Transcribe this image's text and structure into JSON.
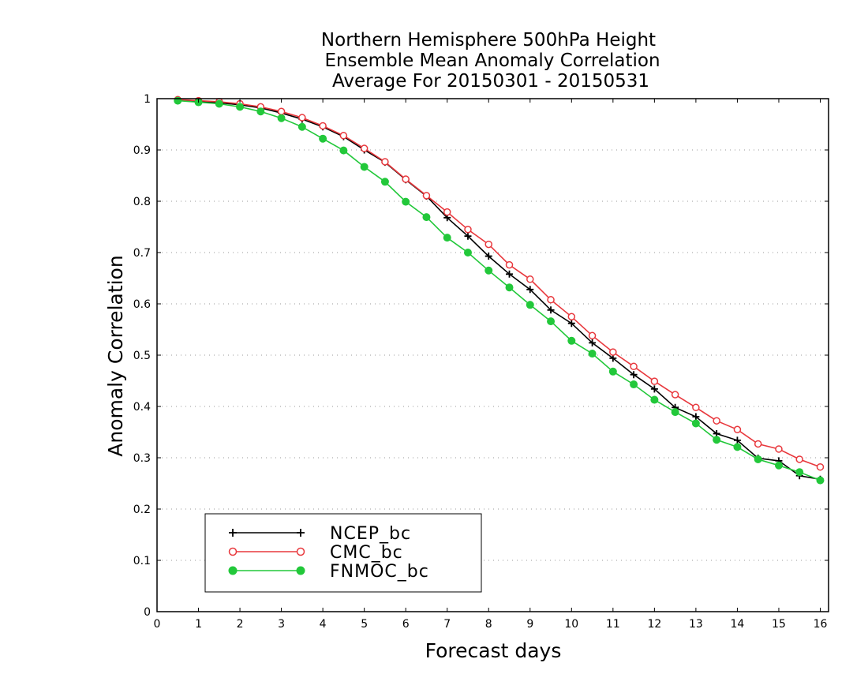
{
  "chart_data": {
    "type": "line",
    "title": [
      "Northern Hemisphere 500hPa Height",
      "Ensemble Mean Anomaly Correlation",
      "Average For 20150301 - 20150531"
    ],
    "xlabel": "Forecast days",
    "ylabel": "Anomaly Correlation",
    "xlim": [
      0,
      16.2
    ],
    "ylim": [
      0,
      1
    ],
    "xticks": [
      "0",
      "1",
      "2",
      "3",
      "4",
      "5",
      "6",
      "7",
      "8",
      "9",
      "10",
      "11",
      "12",
      "13",
      "14",
      "15",
      "16"
    ],
    "yticks": [
      "0",
      "0.1",
      "0.2",
      "0.3",
      "0.4",
      "0.5",
      "0.6",
      "0.7",
      "0.8",
      "0.9",
      "1"
    ],
    "grid": "horizontal dotted",
    "legend_position": "bottom-left",
    "x": [
      0.5,
      1,
      1.5,
      2,
      2.5,
      3,
      3.5,
      4,
      4.5,
      5,
      5.5,
      6,
      6.5,
      7,
      7.5,
      8,
      8.5,
      9,
      9.5,
      10,
      10.5,
      11,
      11.5,
      12,
      12.5,
      13,
      13.5,
      14,
      14.5,
      15,
      15.5,
      16
    ],
    "series": [
      {
        "name": "NCEP_bc",
        "color": "#000000",
        "marker": "plus",
        "values": [
          0.997,
          0.994,
          0.992,
          0.988,
          0.982,
          0.972,
          0.96,
          0.945,
          0.926,
          0.9,
          0.876,
          0.842,
          0.81,
          0.768,
          0.732,
          0.693,
          0.658,
          0.628,
          0.588,
          0.562,
          0.524,
          0.494,
          0.462,
          0.434,
          0.398,
          0.38,
          0.347,
          0.334,
          0.299,
          0.294,
          0.265,
          0.258
        ]
      },
      {
        "name": "CMC_bc",
        "color": "#e8383d",
        "marker": "open-circle",
        "values": [
          0.998,
          0.996,
          0.994,
          0.99,
          0.984,
          0.975,
          0.963,
          0.947,
          0.928,
          0.903,
          0.877,
          0.843,
          0.811,
          0.779,
          0.745,
          0.716,
          0.676,
          0.648,
          0.608,
          0.575,
          0.538,
          0.506,
          0.478,
          0.449,
          0.423,
          0.398,
          0.372,
          0.355,
          0.327,
          0.317,
          0.297,
          0.282
        ]
      },
      {
        "name": "FNMOC_bc",
        "color": "#22c83a",
        "marker": "filled-circle",
        "values": [
          0.996,
          0.993,
          0.99,
          0.984,
          0.975,
          0.962,
          0.945,
          0.922,
          0.899,
          0.867,
          0.838,
          0.799,
          0.769,
          0.729,
          0.7,
          0.665,
          0.632,
          0.598,
          0.566,
          0.528,
          0.503,
          0.468,
          0.443,
          0.413,
          0.389,
          0.367,
          0.335,
          0.321,
          0.297,
          0.285,
          0.272,
          0.256
        ]
      }
    ]
  }
}
